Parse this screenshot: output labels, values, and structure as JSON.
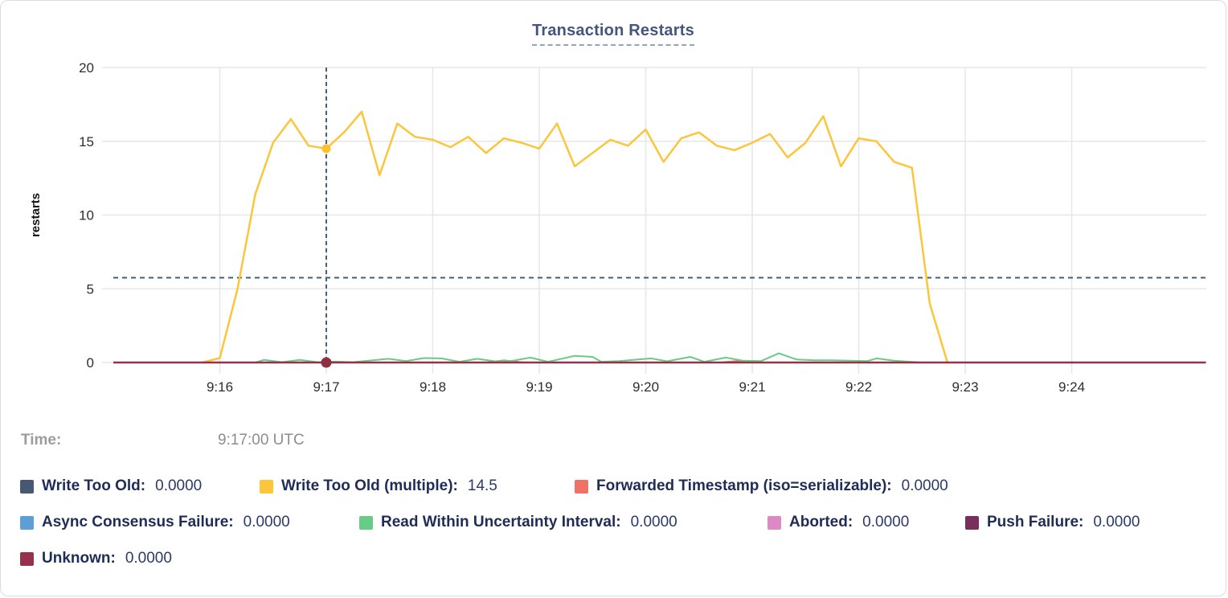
{
  "time": {
    "label": "Time:",
    "value": "9:17:00 UTC"
  },
  "legend": {
    "items": [
      {
        "label": "Write Too Old:",
        "value": "0.0000"
      },
      {
        "label": "Write Too Old (multiple):",
        "value": "14.5"
      },
      {
        "label": "Forwarded Timestamp (iso=serializable):",
        "value": "0.0000"
      },
      {
        "label": "Async Consensus Failure:",
        "value": "0.0000"
      },
      {
        "label": "Read Within Uncertainty Interval:",
        "value": "0.0000"
      },
      {
        "label": "Aborted:",
        "value": "0.0000"
      },
      {
        "label": "Push Failure:",
        "value": "0.0000"
      },
      {
        "label": "Unknown:",
        "value": "0.0000"
      }
    ]
  },
  "chart_data": {
    "type": "line",
    "title": "Transaction Restarts",
    "xlabel": "",
    "ylabel": "restarts",
    "x_unit": "minutes after 9:00 (UTC)",
    "xlim": [
      15.0,
      25.27
    ],
    "ylim": [
      0,
      20
    ],
    "grid": true,
    "yticks": [
      0,
      5,
      10,
      15,
      20
    ],
    "xticks": [
      {
        "t": 16,
        "label": "9:16"
      },
      {
        "t": 17,
        "label": "9:17"
      },
      {
        "t": 18,
        "label": "9:18"
      },
      {
        "t": 19,
        "label": "9:19"
      },
      {
        "t": 20,
        "label": "9:20"
      },
      {
        "t": 21,
        "label": "9:21"
      },
      {
        "t": 22,
        "label": "9:22"
      },
      {
        "t": 23,
        "label": "9:23"
      },
      {
        "t": 24,
        "label": "9:24"
      }
    ],
    "hover": {
      "time_t": 17.0,
      "avg_hline_value": 5.75,
      "line_color": "#41617A"
    },
    "markers": [
      {
        "t": 17.0,
        "v": 14.5,
        "color": "#FDC12E",
        "r": 5.5
      },
      {
        "t": 17.0,
        "v": 0.0,
        "color": "#8E2F44",
        "r": 6.5
      }
    ],
    "series": [
      {
        "name": "Write Too Old",
        "color": "#475872",
        "width": 1.5,
        "current": 0.0,
        "points": [
          [
            15.0,
            0
          ],
          [
            25.26,
            0
          ]
        ]
      },
      {
        "name": "Write Too Old (multiple)",
        "color": "#FCC63C",
        "width": 2.5,
        "current": 14.5,
        "points": [
          [
            15.833,
            0
          ],
          [
            16.0,
            0.3
          ],
          [
            16.167,
            5.0
          ],
          [
            16.333,
            11.4
          ],
          [
            16.5,
            14.9
          ],
          [
            16.667,
            16.5
          ],
          [
            16.833,
            14.7
          ],
          [
            17.0,
            14.5
          ],
          [
            17.167,
            15.6
          ],
          [
            17.333,
            17.0
          ],
          [
            17.5,
            12.7
          ],
          [
            17.667,
            16.2
          ],
          [
            17.833,
            15.3
          ],
          [
            18.0,
            15.1
          ],
          [
            18.167,
            14.6
          ],
          [
            18.333,
            15.3
          ],
          [
            18.5,
            14.2
          ],
          [
            18.667,
            15.2
          ],
          [
            18.833,
            14.9
          ],
          [
            19.0,
            14.5
          ],
          [
            19.167,
            16.2
          ],
          [
            19.333,
            13.3
          ],
          [
            19.5,
            14.2
          ],
          [
            19.667,
            15.1
          ],
          [
            19.833,
            14.7
          ],
          [
            20.0,
            15.8
          ],
          [
            20.167,
            13.6
          ],
          [
            20.333,
            15.2
          ],
          [
            20.5,
            15.6
          ],
          [
            20.667,
            14.7
          ],
          [
            20.833,
            14.4
          ],
          [
            21.0,
            14.9
          ],
          [
            21.167,
            15.5
          ],
          [
            21.333,
            13.9
          ],
          [
            21.5,
            14.9
          ],
          [
            21.667,
            16.7
          ],
          [
            21.833,
            13.3
          ],
          [
            22.0,
            15.2
          ],
          [
            22.167,
            15.0
          ],
          [
            22.333,
            13.6
          ],
          [
            22.5,
            13.2
          ],
          [
            22.667,
            4.0
          ],
          [
            22.833,
            0
          ]
        ]
      },
      {
        "name": "Forwarded Timestamp (iso=serializable)",
        "color": "#EE7266",
        "width": 2,
        "current": 0.0,
        "points": [
          [
            15.0,
            0
          ],
          [
            18.5,
            0
          ],
          [
            18.667,
            0.14
          ],
          [
            18.833,
            0.02
          ],
          [
            18.9,
            0
          ],
          [
            20.7,
            0
          ],
          [
            20.85,
            0.1
          ],
          [
            21.0,
            0
          ],
          [
            25.26,
            0
          ]
        ]
      },
      {
        "name": "Async Consensus Failure",
        "color": "#5C9ED6",
        "width": 1.5,
        "current": 0.0,
        "points": [
          [
            15.0,
            0
          ],
          [
            25.26,
            0
          ]
        ]
      },
      {
        "name": "Read Within Uncertainty Interval",
        "color": "#67CC85",
        "width": 2,
        "current": 0.0,
        "points": [
          [
            16.333,
            0
          ],
          [
            16.417,
            0.18
          ],
          [
            16.583,
            0.02
          ],
          [
            16.75,
            0.18
          ],
          [
            16.917,
            0.02
          ],
          [
            17.083,
            0.06
          ],
          [
            17.25,
            0.02
          ],
          [
            17.583,
            0.25
          ],
          [
            17.75,
            0.1
          ],
          [
            17.917,
            0.3
          ],
          [
            18.083,
            0.28
          ],
          [
            18.25,
            0.05
          ],
          [
            18.417,
            0.25
          ],
          [
            18.583,
            0.08
          ],
          [
            18.75,
            0.12
          ],
          [
            18.917,
            0.33
          ],
          [
            19.083,
            0.05
          ],
          [
            19.333,
            0.45
          ],
          [
            19.5,
            0.38
          ],
          [
            19.583,
            0.05
          ],
          [
            19.75,
            0.1
          ],
          [
            20.05,
            0.28
          ],
          [
            20.2,
            0.08
          ],
          [
            20.417,
            0.38
          ],
          [
            20.55,
            0.05
          ],
          [
            20.75,
            0.33
          ],
          [
            20.917,
            0.12
          ],
          [
            21.083,
            0.1
          ],
          [
            21.25,
            0.62
          ],
          [
            21.417,
            0.2
          ],
          [
            21.583,
            0.15
          ],
          [
            21.75,
            0.15
          ],
          [
            21.917,
            0.12
          ],
          [
            22.083,
            0.1
          ],
          [
            22.167,
            0.28
          ],
          [
            22.333,
            0.12
          ],
          [
            22.583,
            0
          ]
        ]
      },
      {
        "name": "Aborted",
        "color": "#DB8AC6",
        "width": 1.5,
        "current": 0.0,
        "points": [
          [
            15.0,
            0
          ],
          [
            25.26,
            0
          ]
        ]
      },
      {
        "name": "Push Failure",
        "color": "#7A2E5E",
        "width": 1.5,
        "current": 0.0,
        "points": [
          [
            15.0,
            0
          ],
          [
            25.26,
            0
          ]
        ]
      },
      {
        "name": "Unknown",
        "color": "#97304A",
        "width": 2.5,
        "current": 0.0,
        "points": [
          [
            15.0,
            0
          ],
          [
            25.26,
            0
          ]
        ]
      }
    ]
  }
}
